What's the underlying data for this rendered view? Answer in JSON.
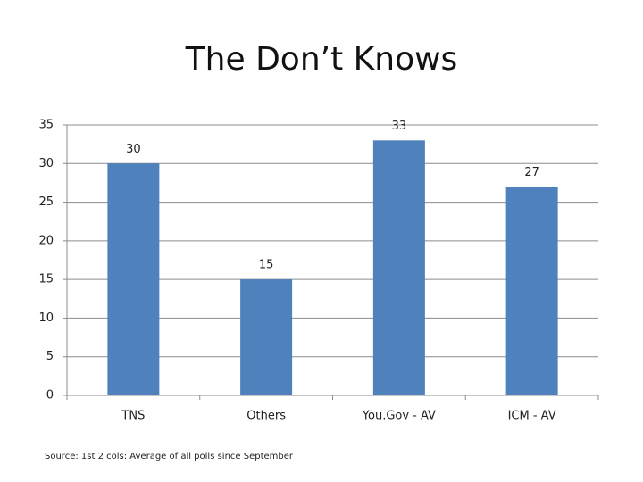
{
  "chart_data": {
    "type": "bar",
    "title": "The Don’t Knows",
    "categories": [
      "TNS",
      "Others",
      "You.Gov - AV",
      "ICM - AV"
    ],
    "values": [
      30,
      15,
      33,
      27
    ],
    "color": "#4f81bd",
    "ylim": [
      0,
      35
    ],
    "yticks": [
      0,
      5,
      10,
      15,
      20,
      25,
      30,
      35
    ],
    "grid": true,
    "source": "Source: 1st 2 cols: Average of all polls since September"
  }
}
